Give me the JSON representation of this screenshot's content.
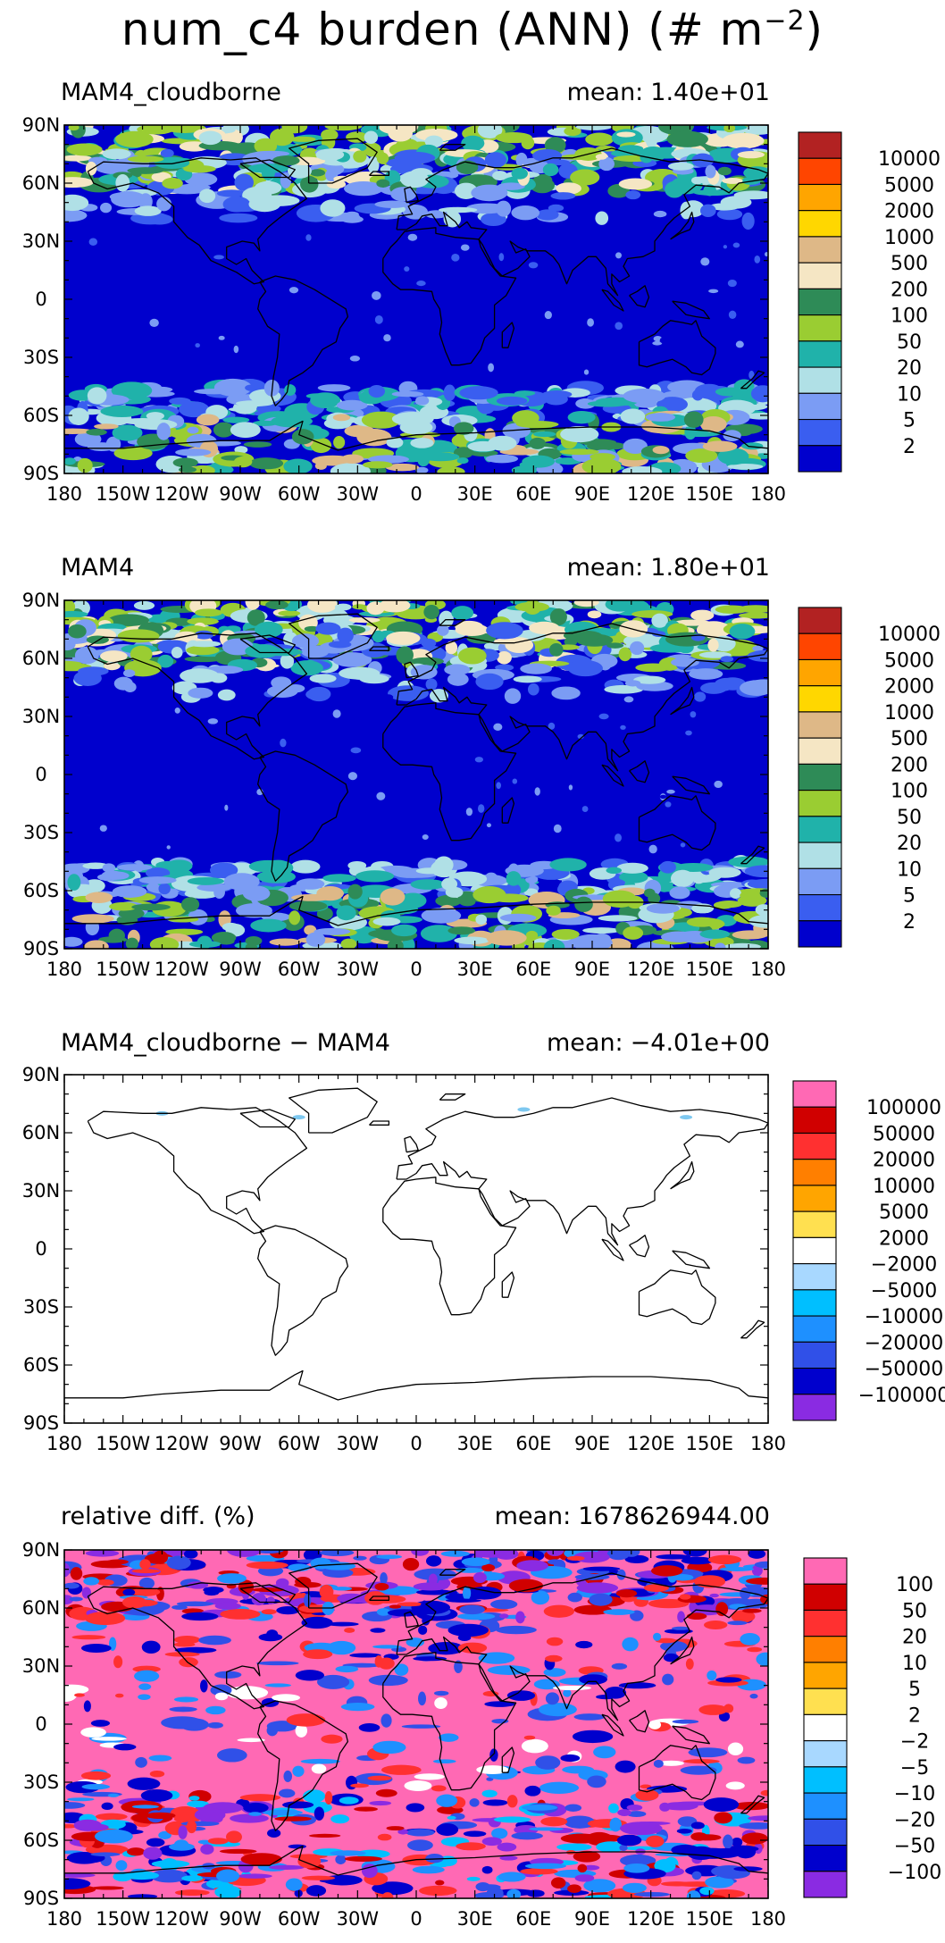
{
  "title": {
    "prefix": "num_c4 burden (ANN) (# m",
    "sup": "−2",
    "suffix": ")"
  },
  "x_ticks": [
    "180",
    "150W",
    "120W",
    "90W",
    "60W",
    "30W",
    "0",
    "30E",
    "60E",
    "90E",
    "120E",
    "150E",
    "180"
  ],
  "y_ticks": [
    "90N",
    "60N",
    "30N",
    "0",
    "30S",
    "60S",
    "90S"
  ],
  "panels": [
    {
      "id": "mam4-cloudborne",
      "label": "MAM4_cloudborne",
      "mean_label": "mean:",
      "mean_value": "1.40e+01",
      "colorbar_labels": [
        "10000",
        "5000",
        "2000",
        "1000",
        "500",
        "200",
        "100",
        "50",
        "20",
        "10",
        "5",
        "2"
      ]
    },
    {
      "id": "mam4",
      "label": "MAM4",
      "mean_label": "mean:",
      "mean_value": "1.80e+01",
      "colorbar_labels": [
        "10000",
        "5000",
        "2000",
        "1000",
        "500",
        "200",
        "100",
        "50",
        "20",
        "10",
        "5",
        "2"
      ]
    },
    {
      "id": "difference",
      "label": "MAM4_cloudborne − MAM4",
      "mean_label": "mean:",
      "mean_value": "−4.01e+00",
      "colorbar_labels": [
        "100000",
        "50000",
        "20000",
        "10000",
        "5000",
        "2000",
        "−2000",
        "−5000",
        "−10000",
        "−20000",
        "−50000",
        "−100000"
      ]
    },
    {
      "id": "relative-diff",
      "label": "relative diff. (%)",
      "mean_label": "mean:",
      "mean_value": "1678626944.00",
      "colorbar_labels": [
        "100",
        "50",
        "20",
        "10",
        "5",
        "2",
        "−2",
        "−5",
        "−10",
        "−20",
        "−50",
        "−100"
      ]
    }
  ],
  "chart_data": [
    {
      "type": "heatmap",
      "title": "MAM4_cloudborne",
      "mean": 14.0,
      "xlim": [
        -180,
        180
      ],
      "ylim": [
        -90,
        90
      ],
      "levels": [
        2,
        5,
        10,
        20,
        50,
        100,
        200,
        500,
        1000,
        2000,
        5000,
        10000
      ],
      "colors": [
        "#0000cd",
        "#3a5ef0",
        "#7b9cf4",
        "#b0e0e6",
        "#20b2aa",
        "#9acd32",
        "#2e8b57",
        "#f5e6c4",
        "#deb887",
        "#ffd700",
        "#ffa500",
        "#ff4500",
        "#b22222"
      ],
      "dominant_level": "< 2",
      "notes": "high values (20-1000) over Arctic / northern high latitudes and Southern Ocean"
    },
    {
      "type": "heatmap",
      "title": "MAM4",
      "mean": 18.0,
      "xlim": [
        -180,
        180
      ],
      "ylim": [
        -90,
        90
      ],
      "levels": [
        2,
        5,
        10,
        20,
        50,
        100,
        200,
        500,
        1000,
        2000,
        5000,
        10000
      ],
      "colors": [
        "#0000cd",
        "#3a5ef0",
        "#7b9cf4",
        "#b0e0e6",
        "#20b2aa",
        "#9acd32",
        "#2e8b57",
        "#f5e6c4",
        "#deb887",
        "#ffd700",
        "#ffa500",
        "#ff4500",
        "#b22222"
      ],
      "dominant_level": "< 2"
    },
    {
      "type": "heatmap",
      "title": "MAM4_cloudborne − MAM4",
      "mean": -4.01,
      "xlim": [
        -180,
        180
      ],
      "ylim": [
        -90,
        90
      ],
      "levels": [
        -100000,
        -50000,
        -20000,
        -10000,
        -5000,
        -2000,
        2000,
        5000,
        10000,
        20000,
        50000,
        100000
      ],
      "colors": [
        "#8a2be2",
        "#0000cd",
        "#3050e8",
        "#1e90ff",
        "#00bfff",
        "#a8d8ff",
        "#ffffff",
        "#ffe050",
        "#ffa500",
        "#ff7f00",
        "#ff3030",
        "#d00000",
        "#ff69b4"
      ],
      "dominant_level": "-2000 to 2000"
    },
    {
      "type": "heatmap",
      "title": "relative diff. (%)",
      "mean": 1678626944.0,
      "xlim": [
        -180,
        180
      ],
      "ylim": [
        -90,
        90
      ],
      "levels": [
        -100,
        -50,
        -20,
        -10,
        -5,
        -2,
        2,
        5,
        10,
        20,
        50,
        100
      ],
      "colors": [
        "#8a2be2",
        "#0000cd",
        "#3050e8",
        "#1e90ff",
        "#00bfff",
        "#a8d8ff",
        "#ffffff",
        "#ffe050",
        "#ffa500",
        "#ff7f00",
        "#ff3030",
        "#d00000",
        "#ff69b4"
      ],
      "dominant_level": "> 100"
    }
  ],
  "colors": {
    "abs_colorbar": [
      "#b22222",
      "#ff4500",
      "#ffa500",
      "#ffd700",
      "#deb887",
      "#f5e6c4",
      "#2e8b57",
      "#9acd32",
      "#20b2aa",
      "#b0e0e6",
      "#7b9cf4",
      "#3a5ef0",
      "#0000cd"
    ],
    "diff_colorbar": [
      "#ff69b4",
      "#d00000",
      "#ff3030",
      "#ff7f00",
      "#ffa500",
      "#ffe050",
      "#ffffff",
      "#a8d8ff",
      "#00bfff",
      "#1e90ff",
      "#3050e8",
      "#0000cd",
      "#8a2be2"
    ]
  }
}
